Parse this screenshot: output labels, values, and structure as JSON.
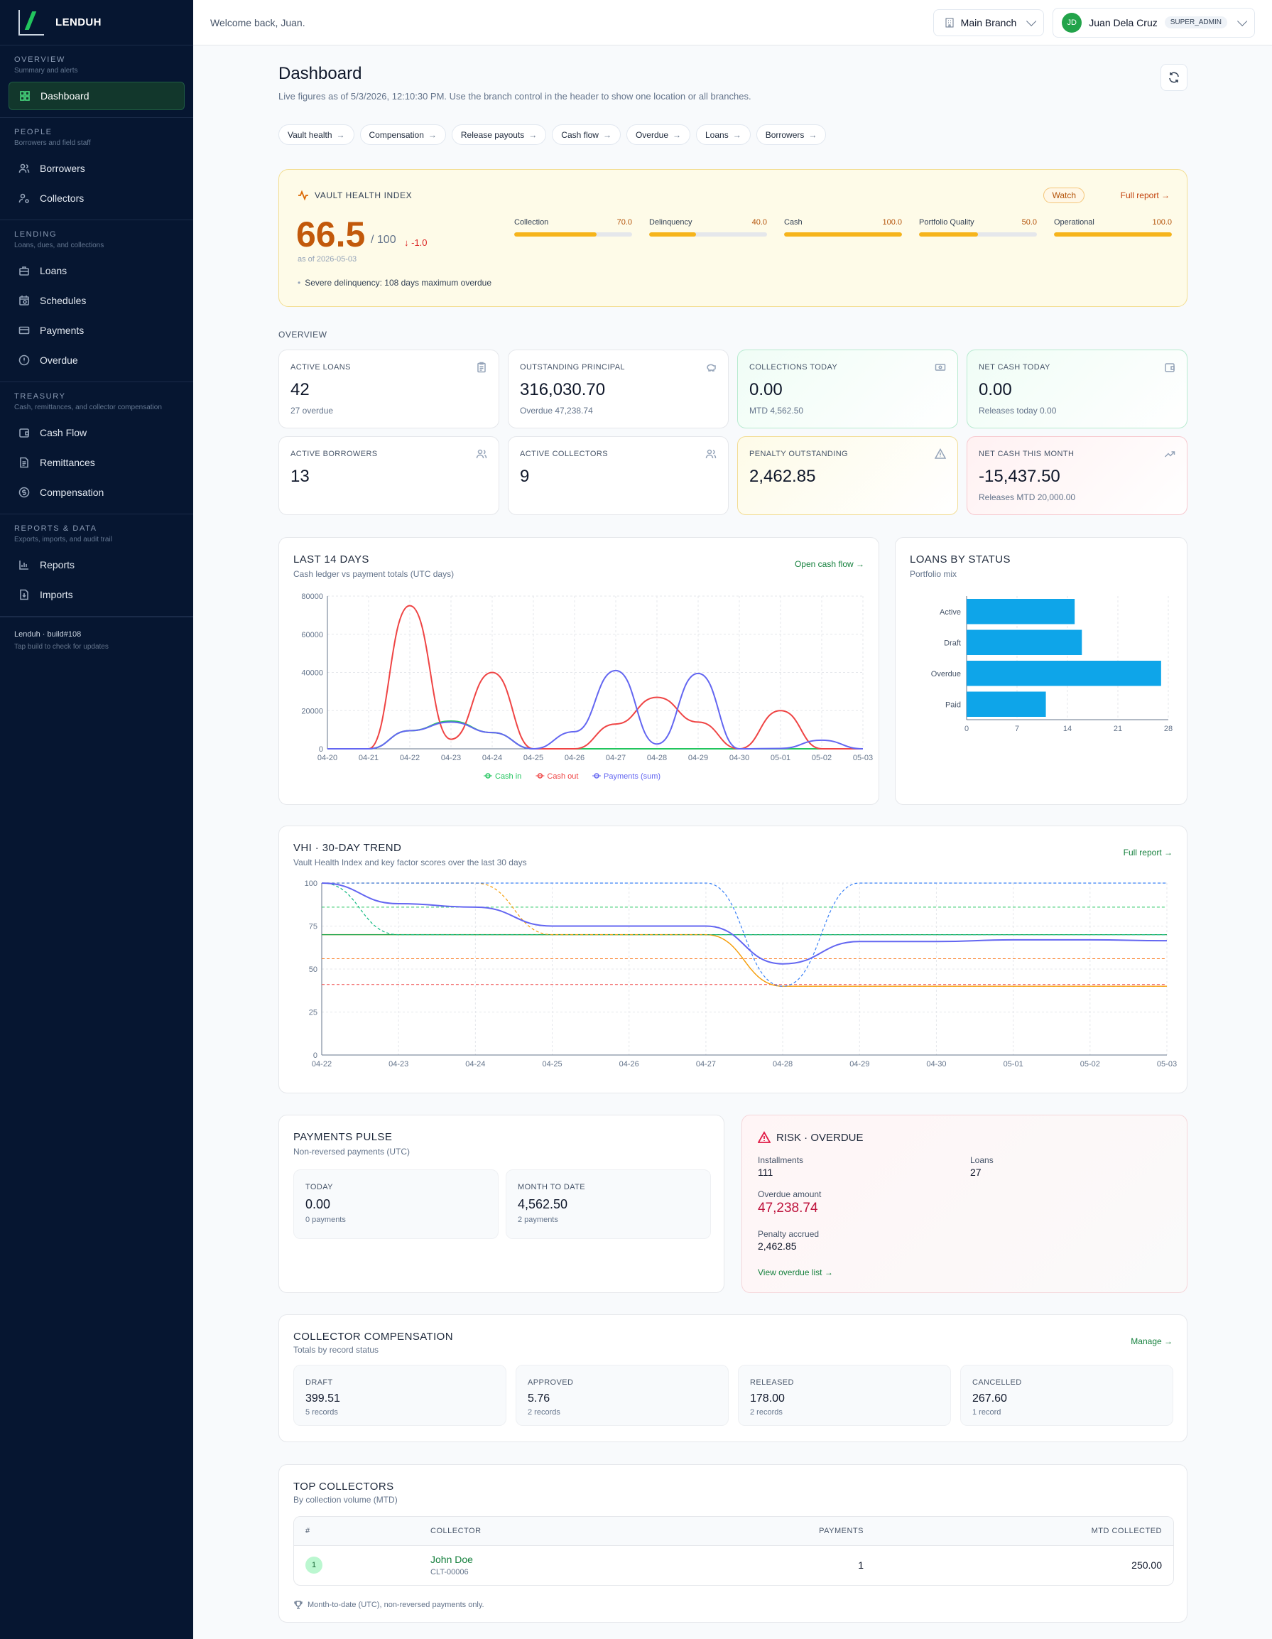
{
  "brand": {
    "name": "LENDUH"
  },
  "header": {
    "welcome": "Welcome back, Juan.",
    "branch": "Main Branch",
    "user_initials": "JD",
    "user_name": "Juan Dela Cruz",
    "user_role": "SUPER_ADMIN"
  },
  "sidebar": {
    "groups": [
      {
        "title": "OVERVIEW",
        "sub": "Summary and alerts",
        "items": [
          {
            "label": "Dashboard",
            "icon": "grid-icon"
          }
        ]
      },
      {
        "title": "PEOPLE",
        "sub": "Borrowers and field staff",
        "items": [
          {
            "label": "Borrowers",
            "icon": "users-icon"
          },
          {
            "label": "Collectors",
            "icon": "user-gear-icon"
          }
        ]
      },
      {
        "title": "LENDING",
        "sub": "Loans, dues, and collections",
        "items": [
          {
            "label": "Loans",
            "icon": "briefcase-icon"
          },
          {
            "label": "Schedules",
            "icon": "calendar-icon"
          },
          {
            "label": "Payments",
            "icon": "card-icon"
          },
          {
            "label": "Overdue",
            "icon": "alert-circle-icon"
          }
        ]
      },
      {
        "title": "TREASURY",
        "sub": "Cash, remittances, and collector compensation",
        "items": [
          {
            "label": "Cash Flow",
            "icon": "wallet-icon"
          },
          {
            "label": "Remittances",
            "icon": "document-icon"
          },
          {
            "label": "Compensation",
            "icon": "dollar-icon"
          }
        ]
      },
      {
        "title": "REPORTS & DATA",
        "sub": "Exports, imports, and audit trail",
        "items": [
          {
            "label": "Reports",
            "icon": "bar-chart-icon"
          },
          {
            "label": "Imports",
            "icon": "file-import-icon"
          }
        ]
      }
    ],
    "footer_build": "Lenduh · build#108",
    "footer_hint": "Tap build to check for updates"
  },
  "page": {
    "title": "Dashboard",
    "subtitle": "Live figures as of 5/3/2026, 12:10:30 PM. Use the branch control in the header to show one location or all branches.",
    "quick_links": [
      "Vault health",
      "Compensation",
      "Release payouts",
      "Cash flow",
      "Overdue",
      "Loans",
      "Borrowers"
    ]
  },
  "vhi": {
    "title": "VAULT HEALTH INDEX",
    "score": "66.5",
    "max": "/ 100",
    "delta": "↓ -1.0",
    "as_of": "as of 2026-05-03",
    "note": "Severe delinquency: 108 days maximum overdue",
    "status": "Watch",
    "report_link": "Full report →",
    "factors": [
      {
        "label": "Collection",
        "value": "70.0",
        "pct": 70
      },
      {
        "label": "Delinquency",
        "value": "40.0",
        "pct": 40
      },
      {
        "label": "Cash",
        "value": "100.0",
        "pct": 100
      },
      {
        "label": "Portfolio Quality",
        "value": "50.0",
        "pct": 50
      },
      {
        "label": "Operational",
        "value": "100.0",
        "pct": 100
      }
    ]
  },
  "overview": {
    "label": "OVERVIEW",
    "cards": [
      {
        "label": "ACTIVE LOANS",
        "value": "42",
        "sub": "27 overdue",
        "icon": "clipboard-icon",
        "tone": ""
      },
      {
        "label": "OUTSTANDING PRINCIPAL",
        "value": "316,030.70",
        "sub": "Overdue 47,238.74",
        "icon": "piggy-bank-icon",
        "tone": ""
      },
      {
        "label": "COLLECTIONS TODAY",
        "value": "0.00",
        "sub": "MTD 4,562.50",
        "icon": "banknote-icon",
        "tone": "green"
      },
      {
        "label": "NET CASH TODAY",
        "value": "0.00",
        "sub": "Releases today 0.00",
        "icon": "wallet-icon",
        "tone": "green"
      },
      {
        "label": "ACTIVE BORROWERS",
        "value": "13",
        "sub": "",
        "icon": "users-icon",
        "tone": ""
      },
      {
        "label": "ACTIVE COLLECTORS",
        "value": "9",
        "sub": "",
        "icon": "users-icon",
        "tone": ""
      },
      {
        "label": "PENALTY OUTSTANDING",
        "value": "2,462.85",
        "sub": "",
        "icon": "warning-icon",
        "tone": "amber"
      },
      {
        "label": "NET CASH THIS MONTH",
        "value": "-15,437.50",
        "sub": "Releases MTD 20,000.00",
        "icon": "trend-icon",
        "tone": "rose"
      }
    ]
  },
  "cash_chart": {
    "title": "LAST 14 DAYS",
    "subtitle": "Cash ledger vs payment totals (UTC days)",
    "link": "Open cash flow →"
  },
  "status_chart": {
    "title": "LOANS BY STATUS",
    "subtitle": "Portfolio mix"
  },
  "trend_chart": {
    "title": "VHI · 30-DAY TREND",
    "subtitle": "Vault Health Index and key factor scores over the last 30 days",
    "link": "Full report →"
  },
  "chart_data": [
    {
      "type": "line",
      "x": [
        "04-20",
        "04-21",
        "04-22",
        "04-23",
        "04-24",
        "04-25",
        "04-26",
        "04-27",
        "04-28",
        "04-29",
        "04-30",
        "05-01",
        "05-02",
        "05-03"
      ],
      "ylim": [
        0,
        80000
      ],
      "yticks": [
        0,
        20000,
        40000,
        60000,
        80000
      ],
      "grid": true,
      "legend_position": "bottom",
      "series": [
        {
          "name": "Cash in",
          "color": "#22c55e",
          "values": [
            0,
            0,
            9500,
            14500,
            8500,
            0,
            0,
            0,
            0,
            0,
            0,
            0,
            0,
            0
          ]
        },
        {
          "name": "Cash out",
          "color": "#ef4444",
          "values": [
            0,
            0,
            75000,
            5000,
            40000,
            0,
            0,
            13000,
            27000,
            14000,
            0,
            20000,
            0,
            0
          ]
        },
        {
          "name": "Payments (sum)",
          "color": "#6366f1",
          "values": [
            0,
            0,
            9500,
            14000,
            8500,
            0,
            9000,
            41000,
            2500,
            39500,
            0,
            200,
            4500,
            0
          ]
        }
      ]
    },
    {
      "type": "bar",
      "orientation": "horizontal",
      "categories": [
        "Active",
        "Draft",
        "Overdue",
        "Paid"
      ],
      "values": [
        15,
        16,
        27,
        11
      ],
      "xlim": [
        0,
        28
      ],
      "xticks": [
        0,
        7,
        14,
        21,
        28
      ],
      "color": "#0ea5e9"
    },
    {
      "type": "line",
      "x": [
        "04-22",
        "04-23",
        "04-24",
        "04-25",
        "04-26",
        "04-27",
        "04-28",
        "04-29",
        "04-30",
        "05-01",
        "05-02",
        "05-03"
      ],
      "ylim": [
        0,
        100
      ],
      "yticks": [
        0,
        25,
        50,
        75,
        100
      ],
      "grid": true,
      "series": [
        {
          "color": "#6366f1",
          "width": 2,
          "dash": false,
          "values": [
            100,
            88,
            86,
            75,
            75,
            75,
            53,
            66,
            66,
            67,
            67,
            66.5
          ]
        },
        {
          "color": "#3b82f6",
          "width": 1.2,
          "dash": true,
          "values": [
            100,
            100,
            100,
            100,
            100,
            100,
            40,
            100,
            100,
            100,
            100,
            100
          ]
        },
        {
          "color": "#f59e0b",
          "width": 1.2,
          "dash": true,
          "values": [
            100,
            100,
            100,
            70,
            70,
            70,
            40,
            40,
            40,
            40,
            40,
            40
          ]
        },
        {
          "color": "#10b981",
          "width": 1.2,
          "dash": true,
          "values": [
            100,
            70,
            70,
            70,
            70,
            70,
            70,
            70,
            70,
            70,
            70,
            70
          ]
        },
        {
          "color": "#16a34a",
          "width": 1.2,
          "dash": false,
          "values": [
            70,
            70,
            70,
            70,
            70,
            70,
            70,
            70,
            70,
            70,
            70,
            70
          ]
        },
        {
          "color": "#f59e0b",
          "width": 1.4,
          "dash": false,
          "values": [
            70,
            70,
            70,
            70,
            70,
            70,
            40,
            40,
            40,
            40,
            40,
            40
          ]
        },
        {
          "color": "#22c55e",
          "width": 1,
          "dash": true,
          "values": [
            86,
            86,
            86,
            86,
            86,
            86,
            86,
            86,
            86,
            86,
            86,
            86
          ]
        },
        {
          "color": "#f97316",
          "width": 1,
          "dash": true,
          "values": [
            56,
            56,
            56,
            56,
            56,
            56,
            56,
            56,
            56,
            56,
            56,
            56
          ]
        },
        {
          "color": "#ef4444",
          "width": 1,
          "dash": true,
          "values": [
            41,
            41,
            41,
            41,
            41,
            41,
            41,
            41,
            41,
            41,
            41,
            41
          ]
        }
      ]
    }
  ],
  "payments_pulse": {
    "title": "PAYMENTS PULSE",
    "subtitle": "Non-reversed payments (UTC)",
    "today_label": "TODAY",
    "today_value": "0.00",
    "today_sub": "0 payments",
    "mtd_label": "MONTH TO DATE",
    "mtd_value": "4,562.50",
    "mtd_sub": "2 payments"
  },
  "risk": {
    "title": "RISK · OVERDUE",
    "installments_label": "Installments",
    "installments": "111",
    "loans_label": "Loans",
    "loans": "27",
    "overdue_label": "Overdue amount",
    "overdue": "47,238.74",
    "penalty_label": "Penalty accrued",
    "penalty": "2,462.85",
    "link": "View overdue list →"
  },
  "compensation": {
    "title": "COLLECTOR COMPENSATION",
    "subtitle": "Totals by record status",
    "link": "Manage →",
    "items": [
      {
        "label": "DRAFT",
        "value": "399.51",
        "sub": "5 records"
      },
      {
        "label": "APPROVED",
        "value": "5.76",
        "sub": "2 records"
      },
      {
        "label": "RELEASED",
        "value": "178.00",
        "sub": "2 records"
      },
      {
        "label": "CANCELLED",
        "value": "267.60",
        "sub": "1 record"
      }
    ]
  },
  "top_collectors": {
    "title": "TOP COLLECTORS",
    "subtitle": "By collection volume (MTD)",
    "columns": [
      "#",
      "COLLECTOR",
      "PAYMENTS",
      "MTD COLLECTED"
    ],
    "rows": [
      {
        "rank": "1",
        "name": "John Doe",
        "code": "CLT-00006",
        "payments": "1",
        "collected": "250.00"
      }
    ],
    "footnote": "Month-to-date (UTC), non-reversed payments only."
  }
}
